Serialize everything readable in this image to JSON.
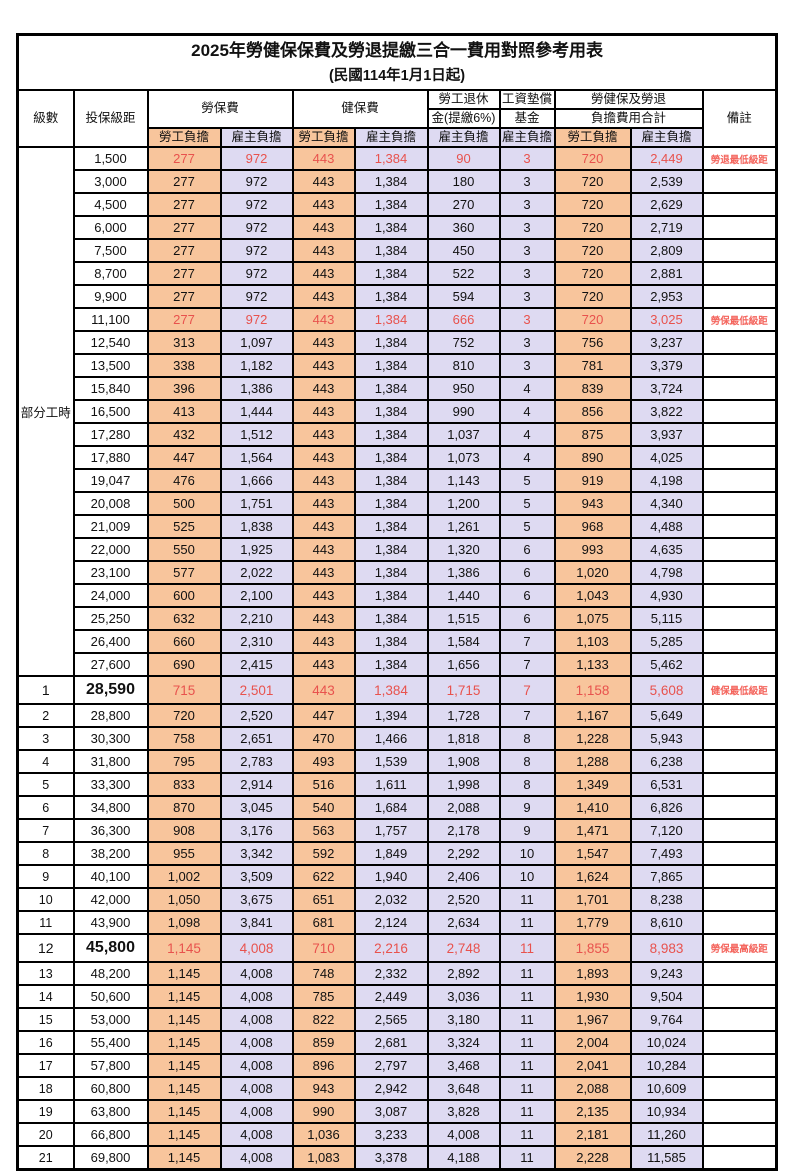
{
  "title": "2025年勞健保保費及勞退提繳三合一費用對照參考用表",
  "subtitle": "(民國114年1月1日起)",
  "header": {
    "level": "級數",
    "grade": "投保級距",
    "labor_fee": "勞保費",
    "health_fee": "健保費",
    "pension_line1": "勞工退休",
    "pension_line2": "金(提繳6%)",
    "wage_fund_line1": "工資墊償",
    "wage_fund_line2": "基金",
    "total_line1": "勞健保及勞退",
    "total_line2": "負擔費用合計",
    "note": "備註",
    "employee_burden": "勞工負擔",
    "employer_burden": "雇主負擔"
  },
  "part_time_label": "部分工時",
  "part_time_span": 23,
  "colors": {
    "employee_col_bg": "#F8C59C",
    "employer_col_bg": "#DEDAF2",
    "highlight_red": "#E8524D",
    "border": "#000000"
  },
  "rows": [
    {
      "level": "",
      "grade": "1,500",
      "values": [
        "277",
        "972",
        "443",
        "1,384",
        "90",
        "3",
        "720",
        "2,449"
      ],
      "note": "勞退最低級距",
      "highlight": true,
      "big": false
    },
    {
      "level": "",
      "grade": "3,000",
      "values": [
        "277",
        "972",
        "443",
        "1,384",
        "180",
        "3",
        "720",
        "2,539"
      ],
      "note": "",
      "highlight": false,
      "big": false
    },
    {
      "level": "",
      "grade": "4,500",
      "values": [
        "277",
        "972",
        "443",
        "1,384",
        "270",
        "3",
        "720",
        "2,629"
      ],
      "note": "",
      "highlight": false,
      "big": false
    },
    {
      "level": "",
      "grade": "6,000",
      "values": [
        "277",
        "972",
        "443",
        "1,384",
        "360",
        "3",
        "720",
        "2,719"
      ],
      "note": "",
      "highlight": false,
      "big": false
    },
    {
      "level": "",
      "grade": "7,500",
      "values": [
        "277",
        "972",
        "443",
        "1,384",
        "450",
        "3",
        "720",
        "2,809"
      ],
      "note": "",
      "highlight": false,
      "big": false
    },
    {
      "level": "",
      "grade": "8,700",
      "values": [
        "277",
        "972",
        "443",
        "1,384",
        "522",
        "3",
        "720",
        "2,881"
      ],
      "note": "",
      "highlight": false,
      "big": false
    },
    {
      "level": "",
      "grade": "9,900",
      "values": [
        "277",
        "972",
        "443",
        "1,384",
        "594",
        "3",
        "720",
        "2,953"
      ],
      "note": "",
      "highlight": false,
      "big": false
    },
    {
      "level": "",
      "grade": "11,100",
      "values": [
        "277",
        "972",
        "443",
        "1,384",
        "666",
        "3",
        "720",
        "3,025"
      ],
      "note": "勞保最低級距",
      "highlight": true,
      "big": false
    },
    {
      "level": "",
      "grade": "12,540",
      "values": [
        "313",
        "1,097",
        "443",
        "1,384",
        "752",
        "3",
        "756",
        "3,237"
      ],
      "note": "",
      "highlight": false,
      "big": false
    },
    {
      "level": "",
      "grade": "13,500",
      "values": [
        "338",
        "1,182",
        "443",
        "1,384",
        "810",
        "3",
        "781",
        "3,379"
      ],
      "note": "",
      "highlight": false,
      "big": false
    },
    {
      "level": "",
      "grade": "15,840",
      "values": [
        "396",
        "1,386",
        "443",
        "1,384",
        "950",
        "4",
        "839",
        "3,724"
      ],
      "note": "",
      "highlight": false,
      "big": false
    },
    {
      "level": "",
      "grade": "16,500",
      "values": [
        "413",
        "1,444",
        "443",
        "1,384",
        "990",
        "4",
        "856",
        "3,822"
      ],
      "note": "",
      "highlight": false,
      "big": false
    },
    {
      "level": "",
      "grade": "17,280",
      "values": [
        "432",
        "1,512",
        "443",
        "1,384",
        "1,037",
        "4",
        "875",
        "3,937"
      ],
      "note": "",
      "highlight": false,
      "big": false
    },
    {
      "level": "",
      "grade": "17,880",
      "values": [
        "447",
        "1,564",
        "443",
        "1,384",
        "1,073",
        "4",
        "890",
        "4,025"
      ],
      "note": "",
      "highlight": false,
      "big": false
    },
    {
      "level": "",
      "grade": "19,047",
      "values": [
        "476",
        "1,666",
        "443",
        "1,384",
        "1,143",
        "5",
        "919",
        "4,198"
      ],
      "note": "",
      "highlight": false,
      "big": false
    },
    {
      "level": "",
      "grade": "20,008",
      "values": [
        "500",
        "1,751",
        "443",
        "1,384",
        "1,200",
        "5",
        "943",
        "4,340"
      ],
      "note": "",
      "highlight": false,
      "big": false
    },
    {
      "level": "",
      "grade": "21,009",
      "values": [
        "525",
        "1,838",
        "443",
        "1,384",
        "1,261",
        "5",
        "968",
        "4,488"
      ],
      "note": "",
      "highlight": false,
      "big": false
    },
    {
      "level": "",
      "grade": "22,000",
      "values": [
        "550",
        "1,925",
        "443",
        "1,384",
        "1,320",
        "6",
        "993",
        "4,635"
      ],
      "note": "",
      "highlight": false,
      "big": false
    },
    {
      "level": "",
      "grade": "23,100",
      "values": [
        "577",
        "2,022",
        "443",
        "1,384",
        "1,386",
        "6",
        "1,020",
        "4,798"
      ],
      "note": "",
      "highlight": false,
      "big": false
    },
    {
      "level": "",
      "grade": "24,000",
      "values": [
        "600",
        "2,100",
        "443",
        "1,384",
        "1,440",
        "6",
        "1,043",
        "4,930"
      ],
      "note": "",
      "highlight": false,
      "big": false
    },
    {
      "level": "",
      "grade": "25,250",
      "values": [
        "632",
        "2,210",
        "443",
        "1,384",
        "1,515",
        "6",
        "1,075",
        "5,115"
      ],
      "note": "",
      "highlight": false,
      "big": false
    },
    {
      "level": "",
      "grade": "26,400",
      "values": [
        "660",
        "2,310",
        "443",
        "1,384",
        "1,584",
        "7",
        "1,103",
        "5,285"
      ],
      "note": "",
      "highlight": false,
      "big": false
    },
    {
      "level": "",
      "grade": "27,600",
      "values": [
        "690",
        "2,415",
        "443",
        "1,384",
        "1,656",
        "7",
        "1,133",
        "5,462"
      ],
      "note": "",
      "highlight": false,
      "big": false
    },
    {
      "level": "1",
      "grade": "28,590",
      "values": [
        "715",
        "2,501",
        "443",
        "1,384",
        "1,715",
        "7",
        "1,158",
        "5,608"
      ],
      "note": "健保最低級距",
      "highlight": true,
      "big": true
    },
    {
      "level": "2",
      "grade": "28,800",
      "values": [
        "720",
        "2,520",
        "447",
        "1,394",
        "1,728",
        "7",
        "1,167",
        "5,649"
      ],
      "note": "",
      "highlight": false,
      "big": false
    },
    {
      "level": "3",
      "grade": "30,300",
      "values": [
        "758",
        "2,651",
        "470",
        "1,466",
        "1,818",
        "8",
        "1,228",
        "5,943"
      ],
      "note": "",
      "highlight": false,
      "big": false
    },
    {
      "level": "4",
      "grade": "31,800",
      "values": [
        "795",
        "2,783",
        "493",
        "1,539",
        "1,908",
        "8",
        "1,288",
        "6,238"
      ],
      "note": "",
      "highlight": false,
      "big": false
    },
    {
      "level": "5",
      "grade": "33,300",
      "values": [
        "833",
        "2,914",
        "516",
        "1,611",
        "1,998",
        "8",
        "1,349",
        "6,531"
      ],
      "note": "",
      "highlight": false,
      "big": false
    },
    {
      "level": "6",
      "grade": "34,800",
      "values": [
        "870",
        "3,045",
        "540",
        "1,684",
        "2,088",
        "9",
        "1,410",
        "6,826"
      ],
      "note": "",
      "highlight": false,
      "big": false
    },
    {
      "level": "7",
      "grade": "36,300",
      "values": [
        "908",
        "3,176",
        "563",
        "1,757",
        "2,178",
        "9",
        "1,471",
        "7,120"
      ],
      "note": "",
      "highlight": false,
      "big": false
    },
    {
      "level": "8",
      "grade": "38,200",
      "values": [
        "955",
        "3,342",
        "592",
        "1,849",
        "2,292",
        "10",
        "1,547",
        "7,493"
      ],
      "note": "",
      "highlight": false,
      "big": false
    },
    {
      "level": "9",
      "grade": "40,100",
      "values": [
        "1,002",
        "3,509",
        "622",
        "1,940",
        "2,406",
        "10",
        "1,624",
        "7,865"
      ],
      "note": "",
      "highlight": false,
      "big": false
    },
    {
      "level": "10",
      "grade": "42,000",
      "values": [
        "1,050",
        "3,675",
        "651",
        "2,032",
        "2,520",
        "11",
        "1,701",
        "8,238"
      ],
      "note": "",
      "highlight": false,
      "big": false
    },
    {
      "level": "11",
      "grade": "43,900",
      "values": [
        "1,098",
        "3,841",
        "681",
        "2,124",
        "2,634",
        "11",
        "1,779",
        "8,610"
      ],
      "note": "",
      "highlight": false,
      "big": false
    },
    {
      "level": "12",
      "grade": "45,800",
      "values": [
        "1,145",
        "4,008",
        "710",
        "2,216",
        "2,748",
        "11",
        "1,855",
        "8,983"
      ],
      "note": "勞保最高級距",
      "highlight": true,
      "big": true
    },
    {
      "level": "13",
      "grade": "48,200",
      "values": [
        "1,145",
        "4,008",
        "748",
        "2,332",
        "2,892",
        "11",
        "1,893",
        "9,243"
      ],
      "note": "",
      "highlight": false,
      "big": false
    },
    {
      "level": "14",
      "grade": "50,600",
      "values": [
        "1,145",
        "4,008",
        "785",
        "2,449",
        "3,036",
        "11",
        "1,930",
        "9,504"
      ],
      "note": "",
      "highlight": false,
      "big": false
    },
    {
      "level": "15",
      "grade": "53,000",
      "values": [
        "1,145",
        "4,008",
        "822",
        "2,565",
        "3,180",
        "11",
        "1,967",
        "9,764"
      ],
      "note": "",
      "highlight": false,
      "big": false
    },
    {
      "level": "16",
      "grade": "55,400",
      "values": [
        "1,145",
        "4,008",
        "859",
        "2,681",
        "3,324",
        "11",
        "2,004",
        "10,024"
      ],
      "note": "",
      "highlight": false,
      "big": false
    },
    {
      "level": "17",
      "grade": "57,800",
      "values": [
        "1,145",
        "4,008",
        "896",
        "2,797",
        "3,468",
        "11",
        "2,041",
        "10,284"
      ],
      "note": "",
      "highlight": false,
      "big": false
    },
    {
      "level": "18",
      "grade": "60,800",
      "values": [
        "1,145",
        "4,008",
        "943",
        "2,942",
        "3,648",
        "11",
        "2,088",
        "10,609"
      ],
      "note": "",
      "highlight": false,
      "big": false
    },
    {
      "level": "19",
      "grade": "63,800",
      "values": [
        "1,145",
        "4,008",
        "990",
        "3,087",
        "3,828",
        "11",
        "2,135",
        "10,934"
      ],
      "note": "",
      "highlight": false,
      "big": false
    },
    {
      "level": "20",
      "grade": "66,800",
      "values": [
        "1,145",
        "4,008",
        "1,036",
        "3,233",
        "4,008",
        "11",
        "2,181",
        "11,260"
      ],
      "note": "",
      "highlight": false,
      "big": false
    },
    {
      "level": "21",
      "grade": "69,800",
      "values": [
        "1,145",
        "4,008",
        "1,083",
        "3,378",
        "4,188",
        "11",
        "2,228",
        "11,585"
      ],
      "note": "",
      "highlight": false,
      "big": false
    }
  ]
}
